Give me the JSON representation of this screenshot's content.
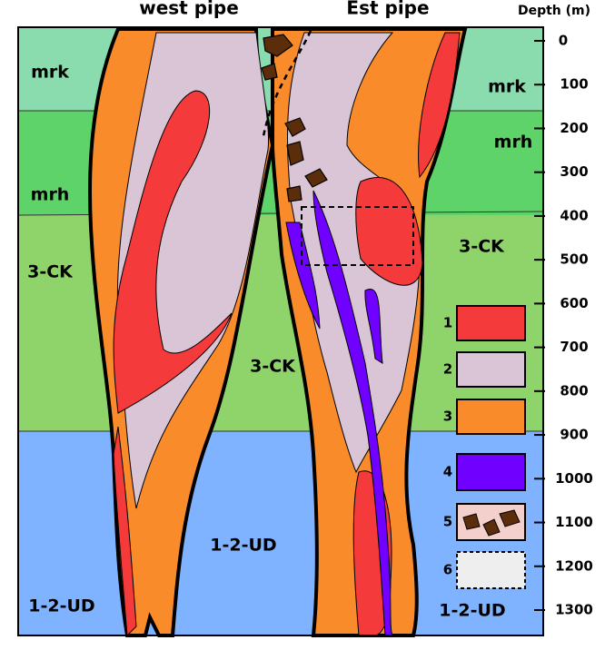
{
  "header": {
    "west_title": "west pipe",
    "east_title": "Est pipe",
    "depth_title": "Depth (m)"
  },
  "depth_ticks": [
    0,
    100,
    200,
    300,
    400,
    500,
    600,
    700,
    800,
    900,
    1000,
    1100,
    1200,
    1300
  ],
  "formations": [
    "mrk",
    "mrk",
    "mrh",
    "mrh",
    "3-CK",
    "3-CK",
    "3-CK",
    "1-2-UD",
    "1-2-UD",
    "1-2-UD"
  ],
  "legend": [
    "1",
    "2",
    "3",
    "4",
    "5",
    "6"
  ]
}
